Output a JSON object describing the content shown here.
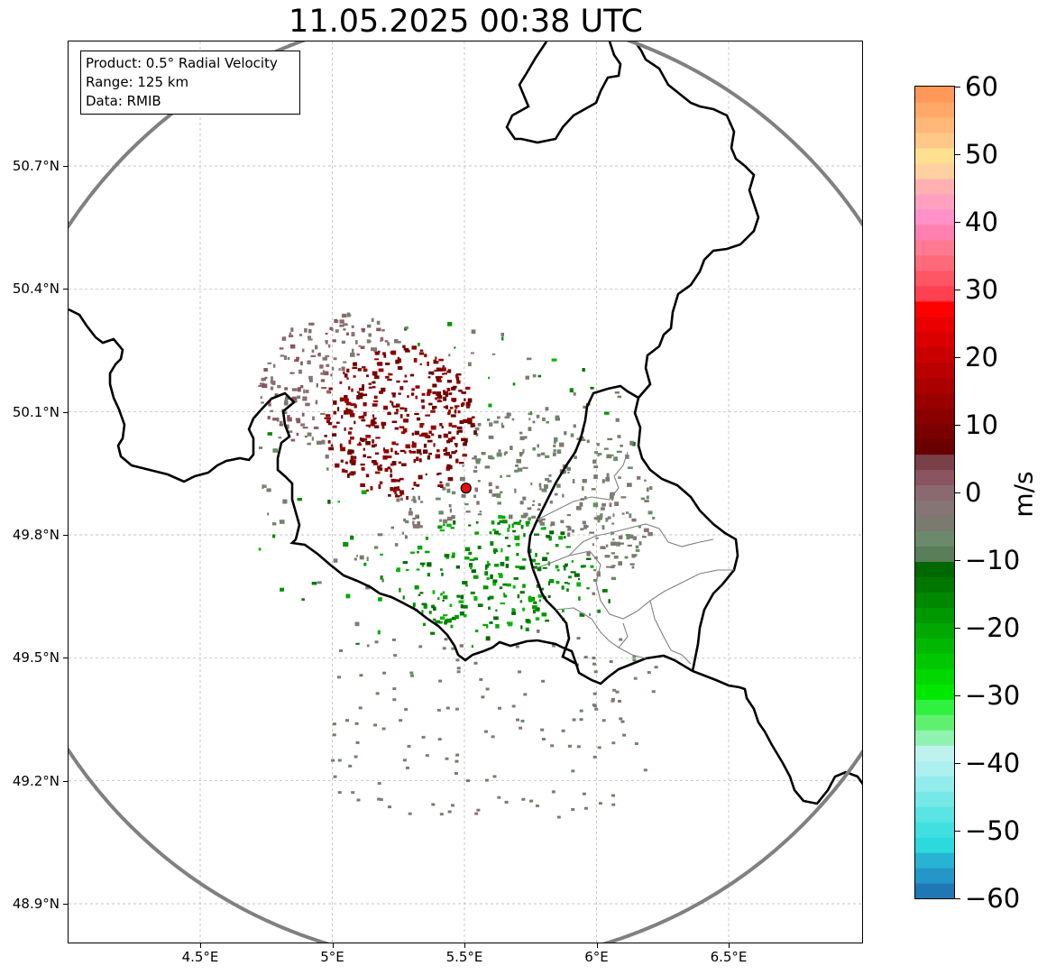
{
  "title": "11.05.2025 00:38 UTC",
  "info_box": {
    "product": "Product: 0.5° Radial Velocity",
    "range": "Range: 125 km",
    "data": "Data: RMIB"
  },
  "axes": {
    "lat_labels": [
      "50.7°N",
      "50.4°N",
      "50.1°N",
      "49.8°N",
      "49.5°N",
      "49.2°N",
      "48.9°N"
    ],
    "lon_labels": [
      "4.5°E",
      "5°E",
      "5.5°E",
      "6°E",
      "6.5°E"
    ],
    "lat_values": [
      50.7,
      50.4,
      50.1,
      49.8,
      49.5,
      49.2,
      48.9
    ],
    "lon_values": [
      4.5,
      5.0,
      5.5,
      6.0,
      6.5
    ]
  },
  "colorbar": {
    "unit": "m/s",
    "range": [
      -60,
      60
    ],
    "tick_values": [
      60,
      50,
      40,
      30,
      20,
      10,
      0,
      -10,
      -20,
      -30,
      -40,
      -50,
      -60
    ],
    "tick_labels": [
      "60",
      "50",
      "40",
      "30",
      "20",
      "10",
      "0",
      "−10",
      "−20",
      "−30",
      "−40",
      "−50",
      "−60"
    ],
    "colors_bottom_to_top": [
      "#1f77b4",
      "#2496c8",
      "#27b3d4",
      "#2cd9dc",
      "#40e0e0",
      "#5ae4e4",
      "#76e8e8",
      "#92ecec",
      "#aef0f0",
      "#bff2ee",
      "#90f2b0",
      "#60f070",
      "#30f040",
      "#00e800",
      "#00d800",
      "#00c800",
      "#00b800",
      "#00a800",
      "#009800",
      "#008800",
      "#007800",
      "#006800",
      "#5a7d5a",
      "#6b8a6b",
      "#7a7a6e",
      "#857575",
      "#8a6a70",
      "#8a5560",
      "#7a4048",
      "#6a0000",
      "#7a0000",
      "#8a0000",
      "#9a0000",
      "#aa0000",
      "#ba0000",
      "#ca0000",
      "#da0000",
      "#ea0000",
      "#ff0000",
      "#ff4050",
      "#ff5565",
      "#ff6a7a",
      "#ff7a90",
      "#ff80b0",
      "#ff90c8",
      "#ffa0c0",
      "#ffb0b0",
      "#ffd0a0",
      "#ffe090",
      "#ffc888",
      "#ffb878",
      "#ffa868",
      "#ff9858"
    ]
  },
  "radar": {
    "site_marker_lat": 49.914,
    "site_marker_lon": 5.506,
    "site_marker_color": "#e01010",
    "range_ring_color": "#808080"
  },
  "colors": {
    "border": "#000000",
    "province_border": "#808080",
    "grid": "#b0b0b0"
  }
}
